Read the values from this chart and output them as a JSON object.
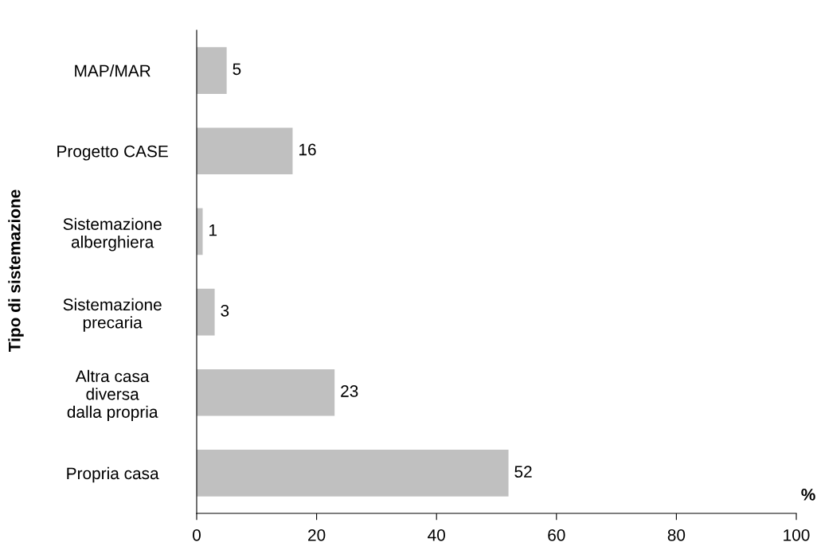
{
  "chart_data": {
    "type": "bar",
    "orientation": "horizontal",
    "categories": [
      "MAP/MAR",
      "Progetto CASE",
      "Sistemazione\nalberghiera",
      "Sistemazione\nprecaria",
      "Altra casa\ndiversa\ndalla propria",
      "Propria casa"
    ],
    "values": [
      5,
      16,
      1,
      3,
      23,
      52
    ],
    "color": "#c0c0c0",
    "xlim": [
      0,
      100
    ],
    "xticks": [
      0,
      20,
      40,
      60,
      80,
      100
    ],
    "xlabel": "%",
    "ylabel": "Tipo di sistemazione",
    "data_labels": true,
    "grid": false,
    "legend": false
  }
}
